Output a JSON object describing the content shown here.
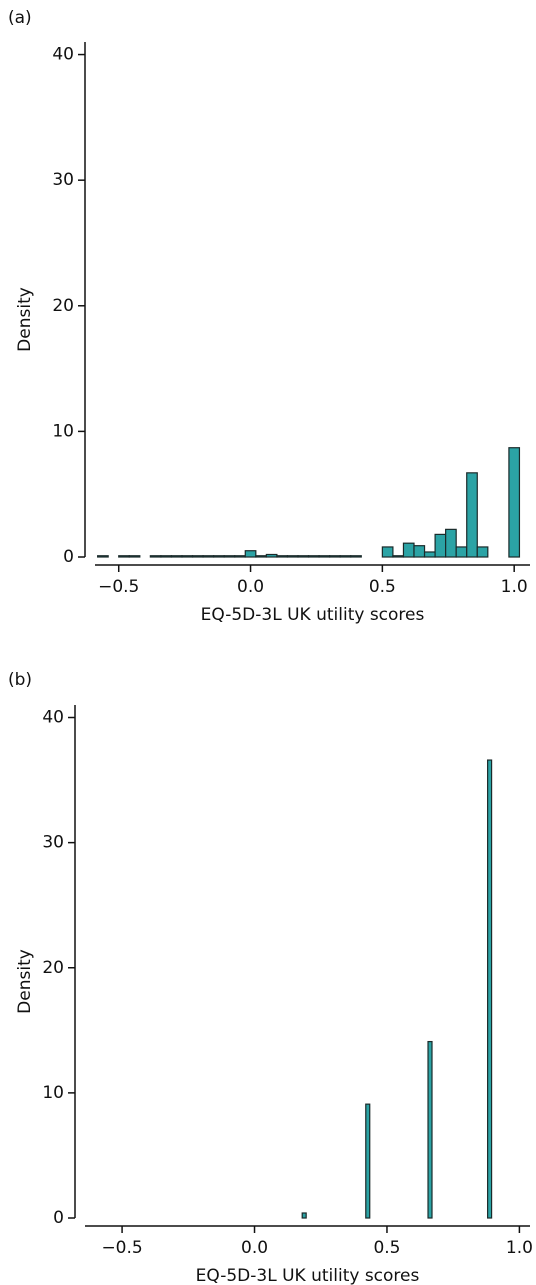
{
  "chart_data": [
    {
      "type": "histogram",
      "panel_label": "(a)",
      "x_label": "EQ-5D-3L UK utility scores",
      "y_label": "Density",
      "color": "#2ba3a5",
      "bins": [
        -0.62,
        -0.58,
        -0.54,
        -0.5,
        -0.46,
        -0.42,
        -0.38,
        -0.34,
        -0.3,
        -0.26,
        -0.22,
        -0.18,
        -0.14,
        -0.1,
        -0.06,
        -0.02,
        0.02,
        0.06,
        0.1,
        0.14,
        0.18,
        0.22,
        0.26,
        0.3,
        0.34,
        0.38,
        0.42,
        0.46,
        0.5,
        0.54,
        0.58,
        0.62,
        0.66,
        0.7,
        0.74,
        0.78,
        0.82,
        0.86,
        0.9,
        0.94,
        0.98,
        1.02
      ],
      "values": [
        0,
        0.1,
        0,
        0.1,
        0.1,
        0,
        0.1,
        0.1,
        0.1,
        0.1,
        0.1,
        0.1,
        0.1,
        0.1,
        0.1,
        0.5,
        0.1,
        0.2,
        0.1,
        0.1,
        0.1,
        0.1,
        0.1,
        0.1,
        0.1,
        0.1,
        0,
        0,
        0.8,
        0.1,
        1.1,
        0.9,
        0.4,
        1.8,
        2.2,
        0.8,
        6.7,
        0.8,
        0,
        0,
        8.7
      ],
      "xlim": [
        -0.59,
        1.06
      ],
      "ylim": [
        0,
        41
      ],
      "xticks": [
        {
          "value": -0.5,
          "label": "−0.5"
        },
        {
          "value": 0,
          "label": "0.0"
        },
        {
          "value": 0.5,
          "label": "0.5"
        },
        {
          "value": 1,
          "label": "1.0"
        }
      ],
      "yticks": [
        0,
        10,
        20,
        30,
        40
      ]
    },
    {
      "type": "histogram",
      "panel_label": "(b)",
      "x_label": "EQ-5D-3L UK utility scores",
      "y_label": "Density",
      "color": "#2ba3a5",
      "bins": [
        -0.6,
        0.18,
        0.195,
        0.42,
        0.435,
        0.655,
        0.67,
        0.88,
        0.895,
        1.0
      ],
      "values": [
        0,
        0.4,
        0,
        9.1,
        0,
        14.1,
        0,
        36.6,
        0
      ],
      "xlim": [
        -0.64,
        1.04
      ],
      "ylim": [
        0,
        41
      ],
      "xticks": [
        {
          "value": -0.5,
          "label": "−0.5"
        },
        {
          "value": 0,
          "label": "0.0"
        },
        {
          "value": 0.5,
          "label": "0.5"
        },
        {
          "value": 1,
          "label": "1.0"
        }
      ],
      "yticks": [
        0,
        10,
        20,
        30,
        40
      ]
    }
  ]
}
